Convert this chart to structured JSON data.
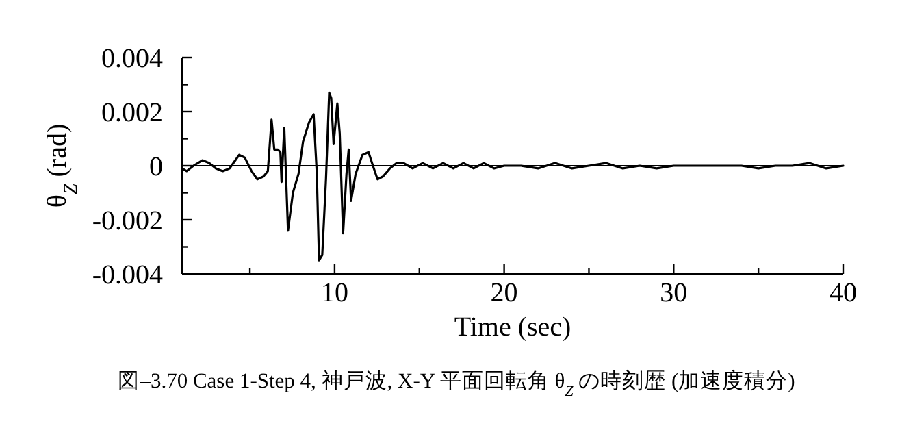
{
  "chart_data": {
    "type": "line",
    "xlabel": "Time (sec)",
    "ylabel": "θ$_{Z}$ (rad)",
    "annotations": [
      "図–3.70  Case 1-Step 4, 神戸波, X-Y 平面回転角 θ$_{Z}$ の時刻歴 (加速度積分)"
    ],
    "xlim": [
      1,
      40
    ],
    "xticks": [
      {
        "value": 5,
        "label": null
      },
      10,
      {
        "value": 15,
        "label": null
      },
      20,
      {
        "value": 25,
        "label": null
      },
      30,
      {
        "value": 35,
        "label": null
      },
      40
    ],
    "ylim": [
      -0.004,
      0.004
    ],
    "yticks": [
      -0.004,
      {
        "value": -0.003,
        "label": null
      },
      -0.002,
      {
        "value": -0.001,
        "label": null
      },
      0,
      {
        "value": 0.001,
        "label": null
      },
      0.002,
      {
        "value": 0.003,
        "label": null
      },
      0.004
    ],
    "grid": false,
    "line_style": "solid",
    "marker": "none",
    "ref_lines": [
      {
        "axis": "y",
        "value": 0,
        "color": "#000000"
      }
    ],
    "series": [
      {
        "color": "#000000",
        "x": [
          1,
          1.27,
          1.67,
          2.2,
          2.6,
          3.0,
          3.4,
          3.8,
          4.37,
          4.7,
          5.1,
          5.44,
          5.8,
          6.06,
          6.28,
          6.44,
          6.65,
          6.8,
          6.87,
          7.03,
          7.25,
          7.54,
          7.87,
          8.14,
          8.49,
          8.76,
          8.95,
          9.08,
          9.27,
          9.49,
          9.68,
          9.8,
          9.94,
          10.16,
          10.3,
          10.5,
          10.7,
          10.83,
          10.97,
          11.24,
          11.64,
          12.0,
          12.26,
          12.53,
          12.85,
          13.26,
          13.66,
          14.07,
          14.6,
          15.2,
          15.8,
          16.4,
          17.0,
          17.6,
          18.2,
          18.8,
          19.4,
          20.0,
          21,
          22,
          23,
          24,
          25,
          26,
          27,
          28,
          29,
          30,
          31,
          32,
          33,
          34,
          35,
          36,
          37,
          38,
          39,
          40
        ],
        "values": [
          -0.0001,
          -0.0002,
          0,
          0.0002,
          0.0001,
          -0.0001,
          -0.0002,
          -0.0001,
          0.0004,
          0.0003,
          -0.0002,
          -0.0005,
          -0.0004,
          -0.0002,
          0.0017,
          0.0006,
          0.0006,
          0.0005,
          -0.0006,
          0.0014,
          -0.0024,
          -0.001,
          -0.0003,
          0.0009,
          0.0016,
          0.0019,
          -0.0003,
          -0.0035,
          -0.0033,
          -0.0005,
          0.0027,
          0.0025,
          0.0008,
          0.0023,
          0.0012,
          -0.0025,
          -0.0003,
          0.0006,
          -0.0013,
          -0.0003,
          0.0004,
          0.0005,
          0,
          -0.0005,
          -0.0004,
          -0.0001,
          0.0001,
          0.0001,
          -0.0001,
          0.0001,
          -0.0001,
          0.0001,
          -0.0001,
          0.0001,
          -0.0001,
          0.0001,
          -0.0001,
          0,
          0,
          -0.0001,
          0.0001,
          -0.0001,
          0,
          0.0001,
          -0.0001,
          0,
          -0.0001,
          0,
          0,
          0,
          0,
          0,
          -0.0001,
          0,
          0,
          0.0001,
          -0.0001,
          0
        ]
      }
    ]
  }
}
